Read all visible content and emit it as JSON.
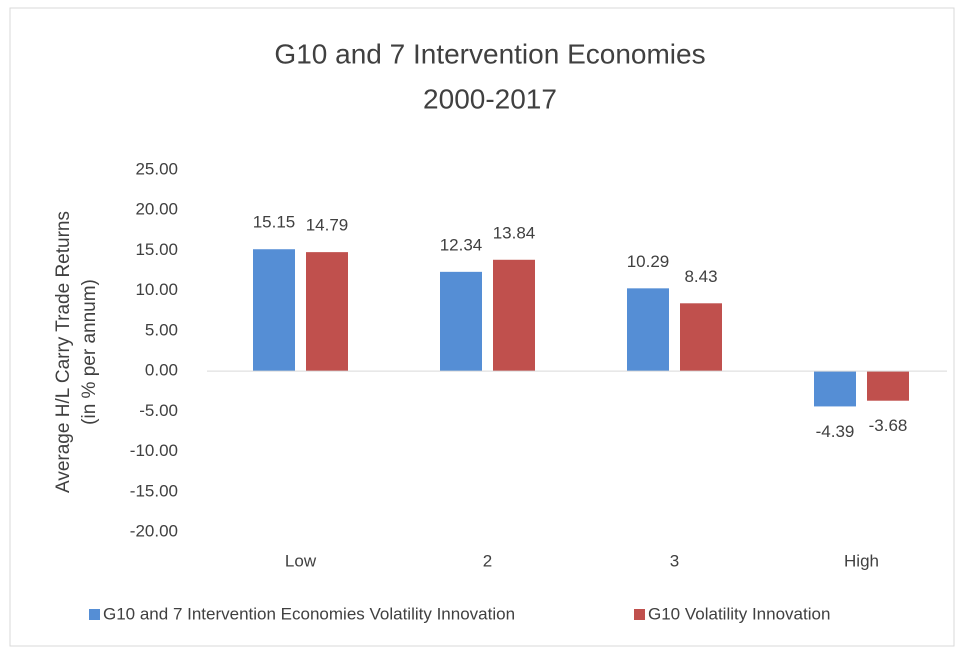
{
  "chart_data": {
    "type": "bar",
    "title": "G10 and 7 Intervention Economies",
    "subtitle": "2000-2017",
    "y_label": [
      "Average H/L Carry Trade Returns",
      "(in % per annum)"
    ],
    "categories": [
      "Low",
      "2",
      "3",
      "High"
    ],
    "series": [
      {
        "name": "G10 and 7 Intervention Economies Volatility Innovation",
        "color": "#558ed5",
        "values": [
          15.15,
          12.34,
          10.29,
          -4.39
        ]
      },
      {
        "name": "G10 Volatility Innovation",
        "color": "#c0504d",
        "values": [
          14.79,
          13.84,
          8.43,
          -3.68
        ]
      }
    ],
    "ylim": [
      -20,
      25
    ],
    "yticks": [
      {
        "value": -20,
        "label": "-20.00"
      },
      {
        "value": -15,
        "label": "-15.00"
      },
      {
        "value": -10,
        "label": "-10.00"
      },
      {
        "value": -5,
        "label": "-5.00"
      },
      {
        "value": 0,
        "label": "0.00"
      },
      {
        "value": 5,
        "label": "5.00"
      },
      {
        "value": 10,
        "label": "10.00"
      },
      {
        "value": 15,
        "label": "15.00"
      },
      {
        "value": 20,
        "label": "20.00"
      },
      {
        "value": 25,
        "label": "25.00"
      }
    ],
    "grid": false,
    "legend": "bottom"
  }
}
